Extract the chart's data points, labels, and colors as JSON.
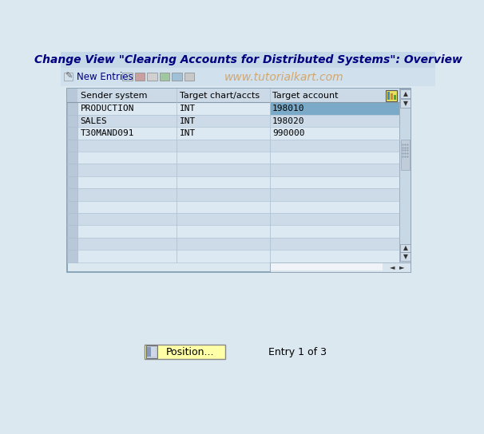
{
  "title": "Change View \"Clearing Accounts for Distributed Systems\": Overview",
  "toolbar_text": "New Entries",
  "watermark": "www.tutorialkart.com",
  "bg_color": "#dce8f0",
  "title_bg": "#c5d8e8",
  "toolbar_bg": "#d0e0ec",
  "table_outer_bg": "#dce8f0",
  "table_header_bg": "#ccdae8",
  "table_row_light": "#dce8f2",
  "table_row_dark": "#cddbe8",
  "gutter_bg": "#b8c8d8",
  "gutter_border": "#a0b4c8",
  "selected_cell_bg": "#7aaac8",
  "scrollbar_bg": "#c8d8e4",
  "scrollbar_thumb": "#d4e0ec",
  "col_headers": [
    "Sender system",
    "Target chart/accts",
    "Target account"
  ],
  "rows": [
    [
      "PRODUCTION",
      "INT",
      "198010"
    ],
    [
      "SALES",
      "INT",
      "198020"
    ],
    [
      "T30MAND091",
      "INT",
      "990000"
    ],
    [
      "",
      "",
      ""
    ],
    [
      "",
      "",
      ""
    ],
    [
      "",
      "",
      ""
    ],
    [
      "",
      "",
      ""
    ],
    [
      "",
      "",
      ""
    ],
    [
      "",
      "",
      ""
    ],
    [
      "",
      "",
      ""
    ],
    [
      "",
      "",
      ""
    ],
    [
      "",
      "",
      ""
    ],
    [
      "",
      "",
      ""
    ]
  ],
  "selected_row": 0,
  "selected_col": 2,
  "position_btn_text": "Position...",
  "entry_text": "Entry 1 of 3",
  "font_color": "#000080",
  "table_text_color": "#000000",
  "title_color": "#000080",
  "watermark_color": "#d4a060"
}
